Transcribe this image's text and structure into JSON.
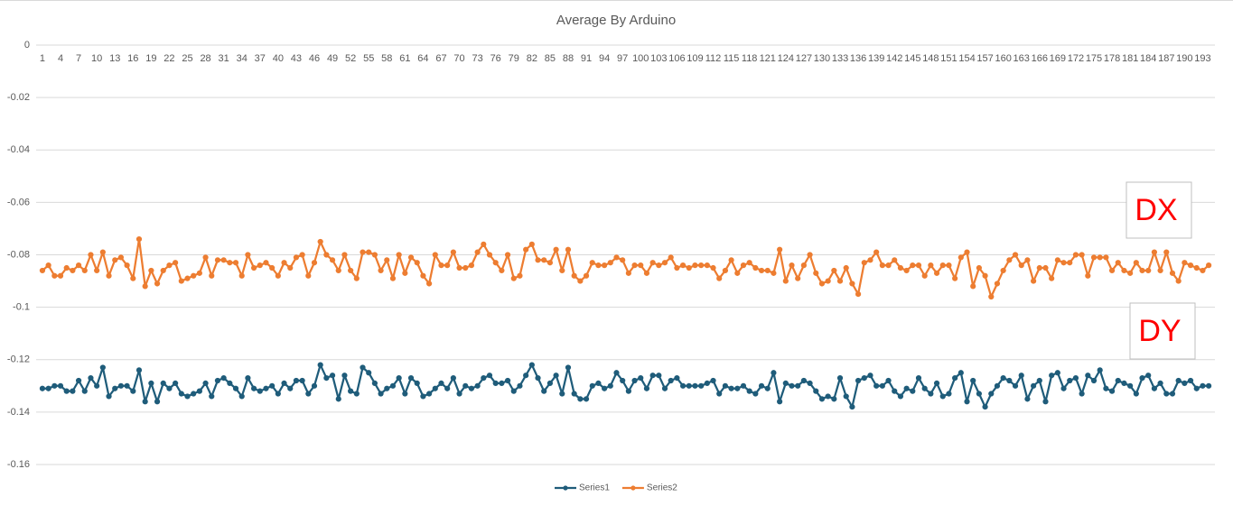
{
  "chart_data": {
    "type": "line",
    "title": "Average By Arduino",
    "categories": [
      1,
      null,
      null,
      4,
      null,
      null,
      7,
      null,
      null,
      10,
      null,
      null,
      13,
      null,
      null,
      16,
      null,
      null,
      19,
      null,
      null,
      22,
      null,
      null,
      25,
      null,
      null,
      28,
      null,
      null,
      31,
      null,
      null,
      34,
      null,
      null,
      37,
      null,
      null,
      40,
      null,
      null,
      43,
      null,
      null,
      46,
      null,
      null,
      49,
      null,
      null,
      52,
      null,
      null,
      55,
      null,
      null,
      58,
      null,
      null,
      61,
      null,
      null,
      64,
      null,
      null,
      67,
      null,
      null,
      70,
      null,
      null,
      73,
      null,
      null,
      76,
      null,
      null,
      79,
      null,
      null,
      82,
      null,
      null,
      85,
      null,
      null,
      88,
      null,
      null,
      91,
      null,
      null,
      94,
      null,
      null,
      97,
      null,
      null,
      100,
      null,
      null,
      103,
      null,
      null,
      106,
      null,
      null,
      109,
      null,
      null,
      112,
      null,
      null,
      115,
      null,
      null,
      118,
      null,
      null,
      121,
      null,
      null,
      124,
      null,
      null,
      127,
      null,
      null,
      130,
      null,
      null,
      133,
      null,
      null,
      136,
      null,
      null,
      139,
      null,
      null,
      142,
      null,
      null,
      145,
      null,
      null,
      148,
      null,
      null,
      151,
      null,
      null,
      154,
      null,
      null,
      157,
      null,
      null,
      160,
      null,
      null,
      163,
      null,
      null,
      166,
      null,
      null,
      169,
      null,
      null,
      172,
      null,
      null,
      175,
      null,
      null,
      178,
      null,
      null,
      181,
      null,
      null,
      184,
      null,
      null,
      187,
      null,
      null,
      190,
      null,
      null,
      193,
      null
    ],
    "series": [
      {
        "name": "Series1",
        "color": "#1f5c7a",
        "values": [
          -0.131,
          -0.131,
          -0.13,
          -0.13,
          -0.132,
          -0.132,
          -0.128,
          -0.132,
          -0.127,
          -0.13,
          -0.123,
          -0.134,
          -0.131,
          -0.13,
          -0.13,
          -0.132,
          -0.124,
          -0.136,
          -0.129,
          -0.136,
          -0.129,
          -0.131,
          -0.129,
          -0.133,
          -0.134,
          -0.133,
          -0.132,
          -0.129,
          -0.134,
          -0.128,
          -0.127,
          -0.129,
          -0.131,
          -0.134,
          -0.127,
          -0.131,
          -0.132,
          -0.131,
          -0.13,
          -0.133,
          -0.129,
          -0.131,
          -0.128,
          -0.128,
          -0.133,
          -0.13,
          -0.122,
          -0.127,
          -0.126,
          -0.135,
          -0.126,
          -0.132,
          -0.133,
          -0.123,
          -0.125,
          -0.129,
          -0.133,
          -0.131,
          -0.13,
          -0.127,
          -0.133,
          -0.127,
          -0.129,
          -0.134,
          -0.133,
          -0.131,
          -0.129,
          -0.131,
          -0.127,
          -0.133,
          -0.13,
          -0.131,
          -0.13,
          -0.127,
          -0.126,
          -0.129,
          -0.129,
          -0.128,
          -0.132,
          -0.13,
          -0.126,
          -0.122,
          -0.127,
          -0.132,
          -0.129,
          -0.126,
          -0.133,
          -0.123,
          -0.133,
          -0.135,
          -0.135,
          -0.13,
          -0.129,
          -0.131,
          -0.13,
          -0.125,
          -0.128,
          -0.132,
          -0.128,
          -0.127,
          -0.131,
          -0.126,
          -0.126,
          -0.131,
          -0.128,
          -0.127,
          -0.13,
          -0.13,
          -0.13,
          -0.13,
          -0.129,
          -0.128,
          -0.133,
          -0.13,
          -0.131,
          -0.131,
          -0.13,
          -0.132,
          -0.133,
          -0.13,
          -0.131,
          -0.125,
          -0.136,
          -0.129,
          -0.13,
          -0.13,
          -0.128,
          -0.129,
          -0.132,
          -0.135,
          -0.134,
          -0.135,
          -0.127,
          -0.134,
          -0.138,
          -0.128,
          -0.127,
          -0.126,
          -0.13,
          -0.13,
          -0.128,
          -0.132,
          -0.134,
          -0.131,
          -0.132,
          -0.127,
          -0.131,
          -0.133,
          -0.129,
          -0.134,
          -0.133,
          -0.127,
          -0.125,
          -0.136,
          -0.128,
          -0.133,
          -0.138,
          -0.133,
          -0.13,
          -0.127,
          -0.128,
          -0.13,
          -0.126,
          -0.135,
          -0.13,
          -0.128,
          -0.136,
          -0.126,
          -0.125,
          -0.131,
          -0.128,
          -0.127,
          -0.133,
          -0.126,
          -0.128,
          -0.124,
          -0.131,
          -0.132,
          -0.128,
          -0.129,
          -0.13,
          -0.133,
          -0.127,
          -0.126,
          -0.131,
          -0.129,
          -0.133,
          -0.133,
          -0.128,
          -0.129,
          -0.128,
          -0.131,
          -0.13,
          -0.13
        ]
      },
      {
        "name": "Series2",
        "color": "#ed7d31",
        "values": [
          -0.086,
          -0.084,
          -0.088,
          -0.088,
          -0.085,
          -0.086,
          -0.084,
          -0.086,
          -0.08,
          -0.086,
          -0.079,
          -0.088,
          -0.082,
          -0.081,
          -0.084,
          -0.089,
          -0.074,
          -0.092,
          -0.086,
          -0.091,
          -0.086,
          -0.084,
          -0.083,
          -0.09,
          -0.089,
          -0.088,
          -0.087,
          -0.081,
          -0.088,
          -0.082,
          -0.082,
          -0.083,
          -0.083,
          -0.088,
          -0.08,
          -0.085,
          -0.084,
          -0.083,
          -0.085,
          -0.088,
          -0.083,
          -0.085,
          -0.081,
          -0.08,
          -0.088,
          -0.083,
          -0.075,
          -0.08,
          -0.082,
          -0.086,
          -0.08,
          -0.086,
          -0.089,
          -0.079,
          -0.079,
          -0.08,
          -0.086,
          -0.082,
          -0.089,
          -0.08,
          -0.087,
          -0.081,
          -0.083,
          -0.088,
          -0.091,
          -0.08,
          -0.084,
          -0.084,
          -0.079,
          -0.085,
          -0.085,
          -0.084,
          -0.079,
          -0.076,
          -0.08,
          -0.083,
          -0.086,
          -0.08,
          -0.089,
          -0.088,
          -0.078,
          -0.076,
          -0.082,
          -0.082,
          -0.083,
          -0.078,
          -0.086,
          -0.078,
          -0.088,
          -0.09,
          -0.088,
          -0.083,
          -0.084,
          -0.084,
          -0.083,
          -0.081,
          -0.082,
          -0.087,
          -0.084,
          -0.084,
          -0.087,
          -0.083,
          -0.084,
          -0.083,
          -0.081,
          -0.085,
          -0.084,
          -0.085,
          -0.084,
          -0.084,
          -0.084,
          -0.085,
          -0.089,
          -0.086,
          -0.082,
          -0.087,
          -0.084,
          -0.083,
          -0.085,
          -0.086,
          -0.086,
          -0.087,
          -0.078,
          -0.09,
          -0.084,
          -0.089,
          -0.084,
          -0.08,
          -0.087,
          -0.091,
          -0.09,
          -0.086,
          -0.09,
          -0.085,
          -0.091,
          -0.095,
          -0.083,
          -0.082,
          -0.079,
          -0.084,
          -0.084,
          -0.082,
          -0.085,
          -0.086,
          -0.084,
          -0.084,
          -0.088,
          -0.084,
          -0.087,
          -0.084,
          -0.084,
          -0.089,
          -0.081,
          -0.079,
          -0.092,
          -0.085,
          -0.088,
          -0.096,
          -0.091,
          -0.086,
          -0.082,
          -0.08,
          -0.084,
          -0.082,
          -0.09,
          -0.085,
          -0.085,
          -0.089,
          -0.082,
          -0.083,
          -0.083,
          -0.08,
          -0.08,
          -0.088,
          -0.081,
          -0.081,
          -0.081,
          -0.086,
          -0.083,
          -0.086,
          -0.087,
          -0.083,
          -0.086,
          -0.086,
          -0.079,
          -0.086,
          -0.079,
          -0.087,
          -0.09,
          -0.083,
          -0.084,
          -0.085,
          -0.086,
          -0.084
        ]
      }
    ],
    "ylim": [
      -0.16,
      0
    ],
    "yticks": [
      0,
      -0.02,
      -0.04,
      -0.06,
      -0.08,
      -0.1,
      -0.12,
      -0.14,
      -0.16
    ],
    "grid": true,
    "legend": "bottom",
    "annotations": [
      "DX",
      "DY"
    ],
    "annotation_color": "#ff0000"
  }
}
